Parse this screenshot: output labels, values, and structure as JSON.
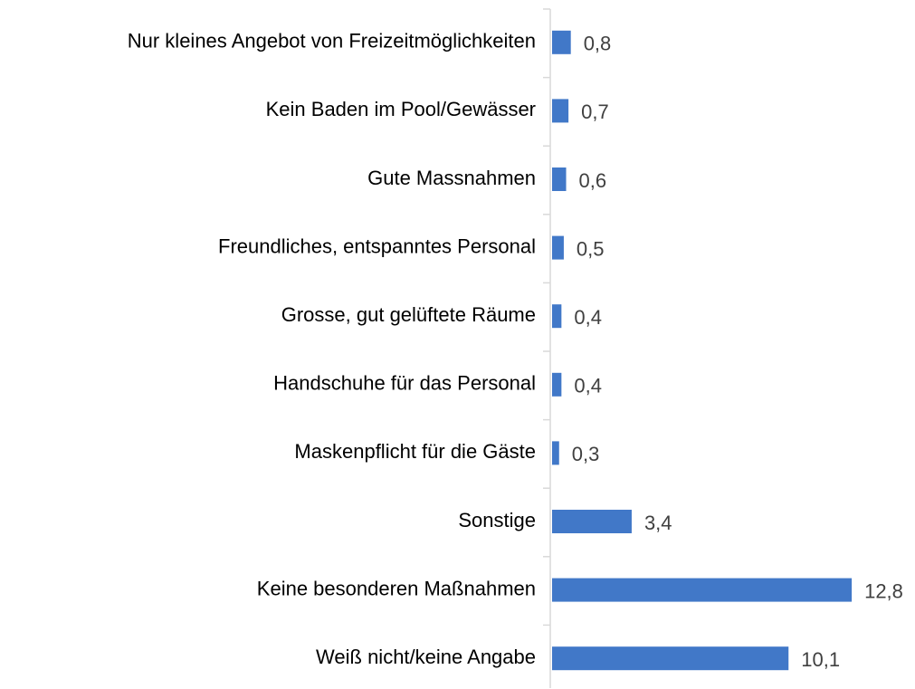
{
  "chart_data": {
    "type": "barh",
    "categories": [
      "Nur kleines Angebot von Freizeitmöglichkeiten",
      "Kein Baden im Pool/Gewässer",
      "Gute Massnahmen",
      "Freundliches, entspanntes Personal",
      "Grosse, gut gelüftete Räume",
      "Handschuhe für das Personal",
      "Maskenpflicht für die Gäste",
      "Sonstige",
      "Keine besonderen Maßnahmen",
      "Weiß nicht/keine Angabe"
    ],
    "values": [
      0.8,
      0.7,
      0.6,
      0.5,
      0.4,
      0.4,
      0.3,
      3.4,
      12.8,
      10.1
    ],
    "value_labels": [
      "0,8",
      "0,7",
      "0,6",
      "0,5",
      "0,4",
      "0,4",
      "0,3",
      "3,4",
      "12,8",
      "10,1"
    ],
    "color": "#4178c8",
    "xlim": [
      0,
      15
    ]
  }
}
